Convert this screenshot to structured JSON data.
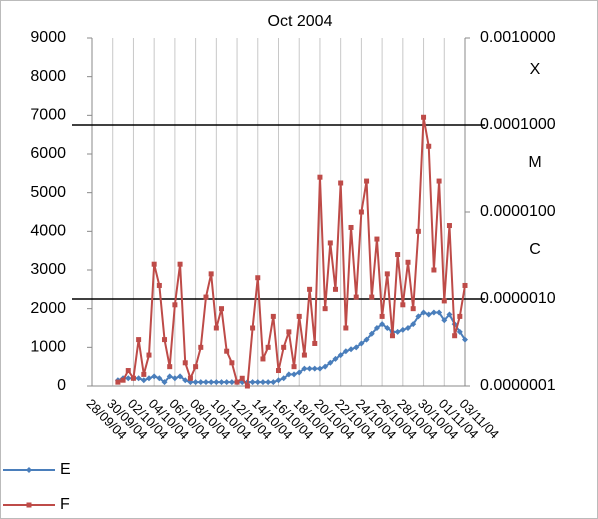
{
  "chart_data": {
    "type": "line",
    "title": "Oct 2004",
    "categories": [
      "28/09/04",
      null,
      null,
      null,
      "30/09/04",
      null,
      null,
      null,
      "02/10/04",
      null,
      null,
      null,
      "04/10/04",
      null,
      null,
      null,
      "06/10/04",
      null,
      null,
      null,
      "08/10/04",
      null,
      null,
      null,
      "10/10/04",
      null,
      null,
      null,
      "12/10/04",
      null,
      null,
      null,
      "14/10/04",
      null,
      null,
      null,
      "16/10/04",
      null,
      null,
      null,
      "18/10/04",
      null,
      null,
      null,
      "20/10/04",
      null,
      null,
      null,
      "22/10/04",
      null,
      null,
      null,
      "24/10/04",
      null,
      null,
      null,
      "26/10/04",
      null,
      null,
      null,
      "28/10/04",
      null,
      null,
      null,
      "30/10/04",
      null,
      null,
      null,
      "01/11/04",
      null,
      null,
      null,
      "03/11/04"
    ],
    "series": [
      {
        "name": "E",
        "color": "#4a7ebb",
        "marker": "diamond",
        "values": [
          null,
          null,
          null,
          null,
          null,
          150,
          200,
          200,
          200,
          200,
          150,
          200,
          250,
          200,
          100,
          250,
          200,
          250,
          150,
          100,
          100,
          100,
          100,
          100,
          100,
          100,
          100,
          100,
          100,
          100,
          100,
          100,
          100,
          100,
          100,
          100,
          150,
          200,
          300,
          300,
          350,
          450,
          450,
          450,
          450,
          500,
          600,
          700,
          800,
          900,
          950,
          1000,
          1100,
          1200,
          1350,
          1500,
          1600,
          1500,
          1400,
          1400,
          1450,
          1500,
          1600,
          1800,
          1900,
          1850,
          1900,
          1900,
          1700,
          1850,
          1600,
          1400,
          1200
        ]
      },
      {
        "name": "F",
        "color": "#be4b48",
        "marker": "square",
        "values": [
          null,
          null,
          null,
          null,
          null,
          100,
          150,
          400,
          200,
          1200,
          300,
          800,
          3150,
          2600,
          1200,
          500,
          2100,
          3150,
          600,
          200,
          500,
          1000,
          2300,
          2900,
          1500,
          2000,
          900,
          600,
          100,
          200,
          0,
          1500,
          2800,
          700,
          1000,
          1800,
          400,
          1000,
          1400,
          500,
          1800,
          800,
          2500,
          1100,
          5400,
          2000,
          3700,
          2500,
          5250,
          1500,
          4100,
          2300,
          4500,
          5300,
          2300,
          3800,
          1800,
          2900,
          1300,
          3400,
          2100,
          3200,
          2000,
          4000,
          6950,
          6200,
          3000,
          5300,
          2200,
          4150,
          1300,
          1800,
          2600
        ]
      }
    ],
    "ylim": [
      0,
      9000
    ],
    "yticks": [
      0,
      1000,
      2000,
      3000,
      4000,
      5000,
      6000,
      7000,
      8000,
      9000
    ],
    "y2lim": [
      1e-07,
      0.001
    ],
    "y2scale": "log",
    "y2ticks": [
      {
        "value": 1e-07,
        "label": "0.0000001"
      },
      {
        "value": 1e-06,
        "label": "0.0000010"
      },
      {
        "value": 1e-05,
        "label": "0.0000100"
      },
      {
        "value": 0.0001,
        "label": "0.0001000"
      },
      {
        "value": 0.001,
        "label": "0.0010000"
      }
    ],
    "reference_lines": [
      {
        "value": 0.0001,
        "axis": "y2"
      },
      {
        "value": 1e-06,
        "axis": "y2"
      }
    ],
    "annotations": [
      "X",
      "M",
      "C"
    ],
    "grid": "vertical",
    "legend": "bottom-left"
  }
}
